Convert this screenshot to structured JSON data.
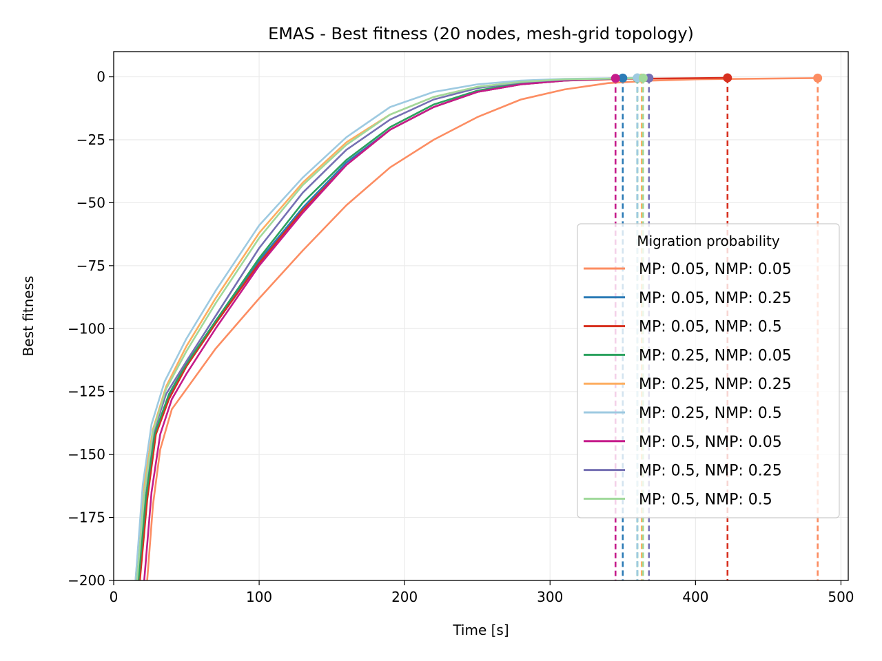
{
  "chart_data": {
    "type": "line",
    "title": "EMAS - Best fitness (20 nodes, mesh-grid topology)",
    "xlabel": "Time [s]",
    "ylabel": "Best fitness",
    "xlim": [
      0,
      505
    ],
    "ylim": [
      -200,
      10
    ],
    "xticks": [
      0,
      100,
      200,
      300,
      400,
      500
    ],
    "yticks": [
      0,
      -25,
      -50,
      -75,
      -100,
      -125,
      -150,
      -175,
      -200
    ],
    "grid": true,
    "legend": {
      "title": "Migration probability",
      "placement": "center-right"
    },
    "series": [
      {
        "name": "MP: 0.05, NMP: 0.05",
        "color": "#fc8d62",
        "end": 484,
        "points": [
          [
            23,
            -200
          ],
          [
            27,
            -170
          ],
          [
            32,
            -148
          ],
          [
            40,
            -132
          ],
          [
            50,
            -124
          ],
          [
            70,
            -108
          ],
          [
            100,
            -88
          ],
          [
            130,
            -69
          ],
          [
            160,
            -51
          ],
          [
            190,
            -36
          ],
          [
            220,
            -25
          ],
          [
            250,
            -16
          ],
          [
            280,
            -9
          ],
          [
            310,
            -5
          ],
          [
            340,
            -2.5
          ],
          [
            370,
            -1.5
          ],
          [
            400,
            -1
          ],
          [
            484,
            -0.5
          ]
        ]
      },
      {
        "name": "MP: 0.05, NMP: 0.25",
        "color": "#2c7bb6",
        "end": 350,
        "points": [
          [
            17,
            -200
          ],
          [
            22,
            -168
          ],
          [
            28,
            -142
          ],
          [
            38,
            -127
          ],
          [
            50,
            -115
          ],
          [
            70,
            -97
          ],
          [
            100,
            -73
          ],
          [
            130,
            -52
          ],
          [
            160,
            -34
          ],
          [
            190,
            -21
          ],
          [
            220,
            -12
          ],
          [
            250,
            -6
          ],
          [
            280,
            -3
          ],
          [
            310,
            -1.5
          ],
          [
            350,
            -0.5
          ]
        ]
      },
      {
        "name": "MP: 0.05, NMP: 0.5",
        "color": "#d7301f",
        "end": 422,
        "points": [
          [
            18,
            -200
          ],
          [
            23,
            -168
          ],
          [
            29,
            -142
          ],
          [
            38,
            -128
          ],
          [
            50,
            -115
          ],
          [
            70,
            -98
          ],
          [
            100,
            -74
          ],
          [
            130,
            -53
          ],
          [
            160,
            -35
          ],
          [
            190,
            -21
          ],
          [
            220,
            -12
          ],
          [
            250,
            -6
          ],
          [
            280,
            -3
          ],
          [
            310,
            -1.5
          ],
          [
            350,
            -0.8
          ],
          [
            422,
            -0.4
          ]
        ]
      },
      {
        "name": "MP: 0.25, NMP: 0.05",
        "color": "#2ca25f",
        "end": 360,
        "points": [
          [
            17,
            -200
          ],
          [
            22,
            -168
          ],
          [
            28,
            -142
          ],
          [
            38,
            -126
          ],
          [
            50,
            -114
          ],
          [
            70,
            -97
          ],
          [
            100,
            -72
          ],
          [
            130,
            -50
          ],
          [
            160,
            -33
          ],
          [
            190,
            -20
          ],
          [
            220,
            -11
          ],
          [
            250,
            -5.5
          ],
          [
            280,
            -2.5
          ],
          [
            310,
            -1.2
          ],
          [
            360,
            -0.5
          ]
        ]
      },
      {
        "name": "MP: 0.25, NMP: 0.25",
        "color": "#fdae61",
        "end": 363,
        "points": [
          [
            15,
            -200
          ],
          [
            20,
            -165
          ],
          [
            27,
            -140
          ],
          [
            36,
            -123
          ],
          [
            50,
            -107
          ],
          [
            70,
            -88
          ],
          [
            100,
            -62
          ],
          [
            130,
            -42
          ],
          [
            160,
            -26
          ],
          [
            190,
            -15
          ],
          [
            220,
            -8
          ],
          [
            250,
            -4
          ],
          [
            280,
            -2
          ],
          [
            310,
            -1
          ],
          [
            363,
            -0.5
          ]
        ]
      },
      {
        "name": "MP: 0.25, NMP: 0.5",
        "color": "#9ecae1",
        "end": 360,
        "points": [
          [
            15,
            -200
          ],
          [
            20,
            -162
          ],
          [
            26,
            -138
          ],
          [
            35,
            -121
          ],
          [
            50,
            -104
          ],
          [
            70,
            -85
          ],
          [
            100,
            -59
          ],
          [
            130,
            -40
          ],
          [
            160,
            -24
          ],
          [
            190,
            -12
          ],
          [
            220,
            -6
          ],
          [
            250,
            -3
          ],
          [
            280,
            -1.5
          ],
          [
            310,
            -0.8
          ],
          [
            360,
            -0.4
          ]
        ]
      },
      {
        "name": "MP: 0.5, NMP: 0.05",
        "color": "#c51b8a",
        "end": 345,
        "points": [
          [
            21,
            -200
          ],
          [
            26,
            -165
          ],
          [
            32,
            -142
          ],
          [
            40,
            -128
          ],
          [
            50,
            -118
          ],
          [
            70,
            -100
          ],
          [
            100,
            -75
          ],
          [
            130,
            -54
          ],
          [
            160,
            -35
          ],
          [
            190,
            -21
          ],
          [
            220,
            -12
          ],
          [
            250,
            -6
          ],
          [
            280,
            -3
          ],
          [
            310,
            -1.5
          ],
          [
            345,
            -0.6
          ]
        ]
      },
      {
        "name": "MP: 0.5, NMP: 0.25",
        "color": "#7570b3",
        "end": 368,
        "points": [
          [
            16,
            -200
          ],
          [
            21,
            -167
          ],
          [
            27,
            -142
          ],
          [
            36,
            -126
          ],
          [
            50,
            -113
          ],
          [
            70,
            -95
          ],
          [
            100,
            -68
          ],
          [
            130,
            -46
          ],
          [
            160,
            -29
          ],
          [
            190,
            -17
          ],
          [
            220,
            -9
          ],
          [
            250,
            -4.5
          ],
          [
            280,
            -2.2
          ],
          [
            310,
            -1.1
          ],
          [
            368,
            -0.5
          ]
        ]
      },
      {
        "name": "MP: 0.5, NMP: 0.5",
        "color": "#a1d99b",
        "end": 364,
        "points": [
          [
            16,
            -200
          ],
          [
            21,
            -166
          ],
          [
            27,
            -141
          ],
          [
            36,
            -124
          ],
          [
            50,
            -109
          ],
          [
            70,
            -90
          ],
          [
            100,
            -64
          ],
          [
            130,
            -43
          ],
          [
            160,
            -27
          ],
          [
            190,
            -15
          ],
          [
            220,
            -8
          ],
          [
            250,
            -4
          ],
          [
            280,
            -2
          ],
          [
            310,
            -1
          ],
          [
            364,
            -0.5
          ]
        ]
      }
    ]
  }
}
